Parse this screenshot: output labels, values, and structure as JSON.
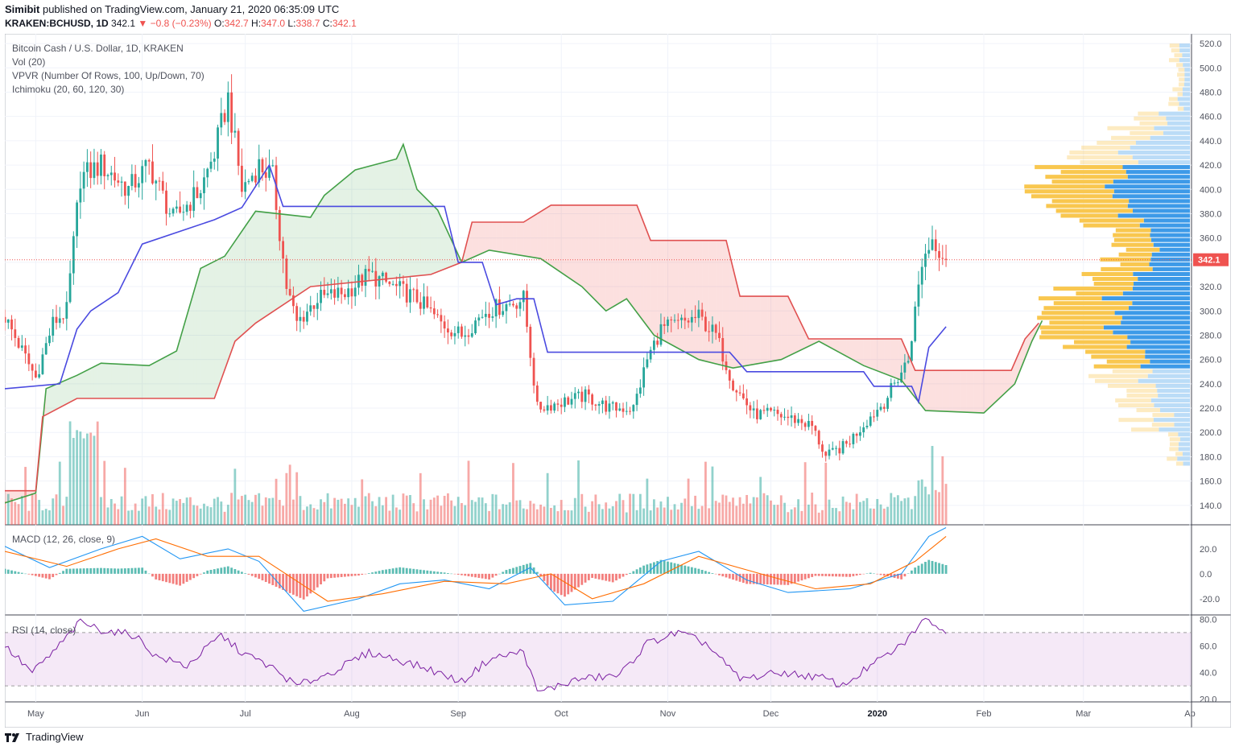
{
  "header": {
    "publisher": "Simibit",
    "published_text": "published on TradingView.com, January 21, 2020 06:35:09 UTC",
    "symbol": "KRAKEN:BCHUSD, 1D",
    "last": "342.1",
    "change": "▼ −0.8 (−0.23%)",
    "o_label": "O:",
    "o_value": "342.7",
    "h_label": "H:",
    "h_value": "347.0",
    "l_label": "L:",
    "l_value": "338.7",
    "c_label": "C:",
    "c_value": "342.1"
  },
  "legend": {
    "title": "Bitcoin Cash / U.S. Dollar, 1D, KRAKEN",
    "vol": "Vol (20)",
    "vpvr": "VPVR (Number Of Rows, 100, Up/Down, 70)",
    "ichimoku": "Ichimoku (20, 60, 120, 30)",
    "macd": "MACD (12, 26, close, 9)",
    "rsi": "RSI (14, close)"
  },
  "footer": {
    "brand": "TradingView"
  },
  "colors": {
    "up": "#26a69a",
    "down": "#ef5350",
    "conversion": "#4a4ae0",
    "base": "#e05050",
    "lead": "#43a047",
    "macd": "#2196f3",
    "signal": "#ff6d00",
    "rsi": "#7b1fa2",
    "vpvr_up": "#3d9ae8",
    "vpvr_down": "#f9c74f"
  },
  "chart_data": [
    {
      "type": "candlestick",
      "title": "Bitcoin Cash / U.S. Dollar, 1D, KRAKEN",
      "x_ticks": [
        "May",
        "Jun",
        "Jul",
        "Aug",
        "Sep",
        "Oct",
        "Nov",
        "Dec",
        "2020",
        "Feb",
        "Mar",
        "Ap"
      ],
      "y_ticks": [
        140,
        160,
        180,
        200,
        220,
        240,
        260,
        280,
        300,
        320,
        340,
        360,
        380,
        400,
        420,
        440,
        460,
        480,
        500,
        520
      ],
      "ylim": [
        124,
        528
      ],
      "last_price_label": "342.1",
      "last_price": 342.1,
      "close_path": [
        [
          "2019-04-22",
          295
        ],
        [
          "2019-05-01",
          245
        ],
        [
          "2019-05-06",
          290
        ],
        [
          "2019-05-10",
          300
        ],
        [
          "2019-05-14",
          410
        ],
        [
          "2019-05-20",
          420
        ],
        [
          "2019-05-28",
          400
        ],
        [
          "2019-06-03",
          420
        ],
        [
          "2019-06-10",
          375
        ],
        [
          "2019-06-18",
          400
        ],
        [
          "2019-06-22",
          430
        ],
        [
          "2019-06-26",
          475
        ],
        [
          "2019-06-30",
          400
        ],
        [
          "2019-07-05",
          420
        ],
        [
          "2019-07-09",
          410
        ],
        [
          "2019-07-13",
          320
        ],
        [
          "2019-07-16",
          290
        ],
        [
          "2019-07-22",
          310
        ],
        [
          "2019-07-30",
          315
        ],
        [
          "2019-08-06",
          330
        ],
        [
          "2019-08-13",
          320
        ],
        [
          "2019-08-20",
          310
        ],
        [
          "2019-08-27",
          290
        ],
        [
          "2019-09-02",
          280
        ],
        [
          "2019-09-09",
          300
        ],
        [
          "2019-09-15",
          305
        ],
        [
          "2019-09-20",
          310
        ],
        [
          "2019-09-24",
          220
        ],
        [
          "2019-10-01",
          225
        ],
        [
          "2019-10-08",
          230
        ],
        [
          "2019-10-15",
          220
        ],
        [
          "2019-10-22",
          220
        ],
        [
          "2019-10-26",
          260
        ],
        [
          "2019-10-30",
          285
        ],
        [
          "2019-11-05",
          290
        ],
        [
          "2019-11-10",
          295
        ],
        [
          "2019-11-15",
          280
        ],
        [
          "2019-11-20",
          240
        ],
        [
          "2019-11-26",
          215
        ],
        [
          "2019-12-02",
          215
        ],
        [
          "2019-12-09",
          210
        ],
        [
          "2019-12-13",
          205
        ],
        [
          "2019-12-17",
          180
        ],
        [
          "2019-12-23",
          190
        ],
        [
          "2019-12-29",
          210
        ],
        [
          "2020-01-03",
          225
        ],
        [
          "2020-01-06",
          240
        ],
        [
          "2020-01-10",
          260
        ],
        [
          "2020-01-14",
          340
        ],
        [
          "2020-01-17",
          360
        ],
        [
          "2020-01-21",
          342.1
        ]
      ],
      "ichimoku": {
        "conversion": [
          [
            "2019-04-22",
            236
          ],
          [
            "2019-05-08",
            240
          ],
          [
            "2019-05-13",
            285
          ],
          [
            "2019-05-17",
            300
          ],
          [
            "2019-05-25",
            315
          ],
          [
            "2019-06-01",
            355
          ],
          [
            "2019-06-22",
            375
          ],
          [
            "2019-06-30",
            385
          ],
          [
            "2019-07-08",
            420
          ],
          [
            "2019-07-12",
            386
          ],
          [
            "2019-08-19",
            386
          ],
          [
            "2019-08-28",
            386
          ],
          [
            "2019-09-01",
            340
          ],
          [
            "2019-09-08",
            340
          ],
          [
            "2019-09-12",
            305
          ],
          [
            "2019-09-18",
            310
          ],
          [
            "2019-09-23",
            310
          ],
          [
            "2019-09-27",
            266
          ],
          [
            "2019-10-15",
            266
          ],
          [
            "2019-10-18",
            266
          ],
          [
            "2019-11-19",
            266
          ],
          [
            "2019-11-24",
            250
          ],
          [
            "2019-12-28",
            250
          ],
          [
            "2019-12-31",
            238
          ],
          [
            "2020-01-11",
            238
          ],
          [
            "2020-01-13",
            225
          ],
          [
            "2020-01-16",
            270
          ],
          [
            "2020-01-21",
            287
          ]
        ],
        "base": [
          [
            "2019-04-22",
            152
          ],
          [
            "2019-05-01",
            152
          ],
          [
            "2019-05-03",
            213
          ],
          [
            "2019-05-13",
            228
          ],
          [
            "2019-06-22",
            228
          ],
          [
            "2019-06-28",
            275
          ],
          [
            "2019-07-04",
            290
          ],
          [
            "2019-07-20",
            320
          ],
          [
            "2019-08-24",
            330
          ],
          [
            "2019-09-02",
            340
          ],
          [
            "2019-09-05",
            373
          ],
          [
            "2019-09-20",
            373
          ],
          [
            "2019-09-28",
            387
          ],
          [
            "2019-10-23",
            387
          ],
          [
            "2019-10-27",
            358
          ],
          [
            "2019-11-18",
            358
          ],
          [
            "2019-11-22",
            312
          ],
          [
            "2019-12-06",
            312
          ],
          [
            "2019-12-12",
            277
          ],
          [
            "2020-01-08",
            277
          ],
          [
            "2020-01-12",
            251
          ],
          [
            "2020-02-09",
            251
          ],
          [
            "2020-02-13",
            277
          ],
          [
            "2020-02-17",
            290
          ]
        ],
        "leading_span_a": [
          [
            "2019-04-22",
            142
          ],
          [
            "2019-05-01",
            150
          ],
          [
            "2019-05-04",
            236
          ],
          [
            "2019-05-13",
            247
          ],
          [
            "2019-05-20",
            257
          ],
          [
            "2019-06-03",
            255
          ],
          [
            "2019-06-11",
            267
          ],
          [
            "2019-06-18",
            335
          ],
          [
            "2019-06-25",
            345
          ],
          [
            "2019-07-04",
            382
          ],
          [
            "2019-07-20",
            377
          ],
          [
            "2019-07-24",
            395
          ],
          [
            "2019-08-02",
            416
          ],
          [
            "2019-08-14",
            425
          ],
          [
            "2019-08-16",
            437
          ],
          [
            "2019-08-20",
            400
          ],
          [
            "2019-08-26",
            383
          ],
          [
            "2019-09-02",
            340
          ],
          [
            "2019-09-10",
            350
          ],
          [
            "2019-09-25",
            343
          ],
          [
            "2019-10-07",
            320
          ],
          [
            "2019-10-14",
            300
          ],
          [
            "2019-10-20",
            310
          ],
          [
            "2019-10-28",
            280
          ],
          [
            "2019-11-10",
            260
          ],
          [
            "2019-11-20",
            253
          ],
          [
            "2019-12-04",
            260
          ],
          [
            "2019-12-15",
            275
          ],
          [
            "2019-12-28",
            255
          ],
          [
            "2020-01-08",
            243
          ],
          [
            "2020-01-15",
            218
          ],
          [
            "2020-02-01",
            216
          ],
          [
            "2020-02-10",
            240
          ],
          [
            "2020-02-15",
            275
          ],
          [
            "2020-02-18",
            292
          ]
        ]
      },
      "volume_note": "Vol (20)",
      "vpvr_note": "VPVR (Number Of Rows, 100, Up/Down, 70)"
    },
    {
      "type": "line",
      "title": "MACD (12, 26, close, 9)",
      "y_ticks": [
        -20.0,
        0.0,
        20.0
      ],
      "ylim": [
        -33,
        38
      ],
      "series": [
        {
          "role": "macd",
          "points": [
            [
              "2019-04-22",
              22
            ],
            [
              "2019-05-05",
              5
            ],
            [
              "2019-05-20",
              20
            ],
            [
              "2019-06-01",
              30
            ],
            [
              "2019-06-12",
              12
            ],
            [
              "2019-06-26",
              20
            ],
            [
              "2019-07-05",
              10
            ],
            [
              "2019-07-18",
              -30
            ],
            [
              "2019-08-03",
              -20
            ],
            [
              "2019-08-15",
              -8
            ],
            [
              "2019-08-28",
              -5
            ],
            [
              "2019-09-10",
              -12
            ],
            [
              "2019-09-22",
              5
            ],
            [
              "2019-10-02",
              -25
            ],
            [
              "2019-10-16",
              -22
            ],
            [
              "2019-10-30",
              10
            ],
            [
              "2019-11-10",
              18
            ],
            [
              "2019-11-24",
              -5
            ],
            [
              "2019-12-06",
              -15
            ],
            [
              "2019-12-24",
              -12
            ],
            [
              "2020-01-08",
              0
            ],
            [
              "2020-01-16",
              30
            ],
            [
              "2020-01-21",
              37
            ]
          ]
        },
        {
          "role": "signal",
          "points": [
            [
              "2019-04-22",
              18
            ],
            [
              "2019-05-10",
              6
            ],
            [
              "2019-05-25",
              20
            ],
            [
              "2019-06-05",
              28
            ],
            [
              "2019-06-20",
              14
            ],
            [
              "2019-07-05",
              14
            ],
            [
              "2019-07-25",
              -22
            ],
            [
              "2019-08-10",
              -16
            ],
            [
              "2019-08-28",
              -6
            ],
            [
              "2019-09-15",
              -8
            ],
            [
              "2019-09-28",
              0
            ],
            [
              "2019-10-10",
              -20
            ],
            [
              "2019-10-25",
              -8
            ],
            [
              "2019-11-10",
              14
            ],
            [
              "2019-11-28",
              0
            ],
            [
              "2019-12-14",
              -12
            ],
            [
              "2019-12-30",
              -8
            ],
            [
              "2020-01-12",
              10
            ],
            [
              "2020-01-21",
              30
            ]
          ]
        }
      ]
    },
    {
      "type": "line",
      "title": "RSI (14, close)",
      "y_ticks": [
        20.0,
        40.0,
        60.0,
        80.0
      ],
      "ylim": [
        18,
        82
      ],
      "band": [
        30,
        70
      ],
      "points": [
        [
          "2019-04-22",
          60
        ],
        [
          "2019-04-30",
          40
        ],
        [
          "2019-05-06",
          55
        ],
        [
          "2019-05-14",
          78
        ],
        [
          "2019-05-20",
          72
        ],
        [
          "2019-05-30",
          68
        ],
        [
          "2019-06-05",
          52
        ],
        [
          "2019-06-14",
          45
        ],
        [
          "2019-06-24",
          68
        ],
        [
          "2019-06-30",
          55
        ],
        [
          "2019-07-08",
          45
        ],
        [
          "2019-07-16",
          30
        ],
        [
          "2019-07-26",
          40
        ],
        [
          "2019-08-06",
          55
        ],
        [
          "2019-08-14",
          50
        ],
        [
          "2019-08-24",
          42
        ],
        [
          "2019-09-02",
          33
        ],
        [
          "2019-09-10",
          50
        ],
        [
          "2019-09-20",
          56
        ],
        [
          "2019-09-24",
          25
        ],
        [
          "2019-10-06",
          35
        ],
        [
          "2019-10-18",
          38
        ],
        [
          "2019-10-26",
          62
        ],
        [
          "2019-11-04",
          70
        ],
        [
          "2019-11-12",
          62
        ],
        [
          "2019-11-22",
          35
        ],
        [
          "2019-12-04",
          40
        ],
        [
          "2019-12-16",
          36
        ],
        [
          "2019-12-22",
          30
        ],
        [
          "2019-12-30",
          45
        ],
        [
          "2020-01-08",
          60
        ],
        [
          "2020-01-13",
          75
        ],
        [
          "2020-01-16",
          81
        ],
        [
          "2020-01-21",
          68
        ]
      ]
    }
  ]
}
